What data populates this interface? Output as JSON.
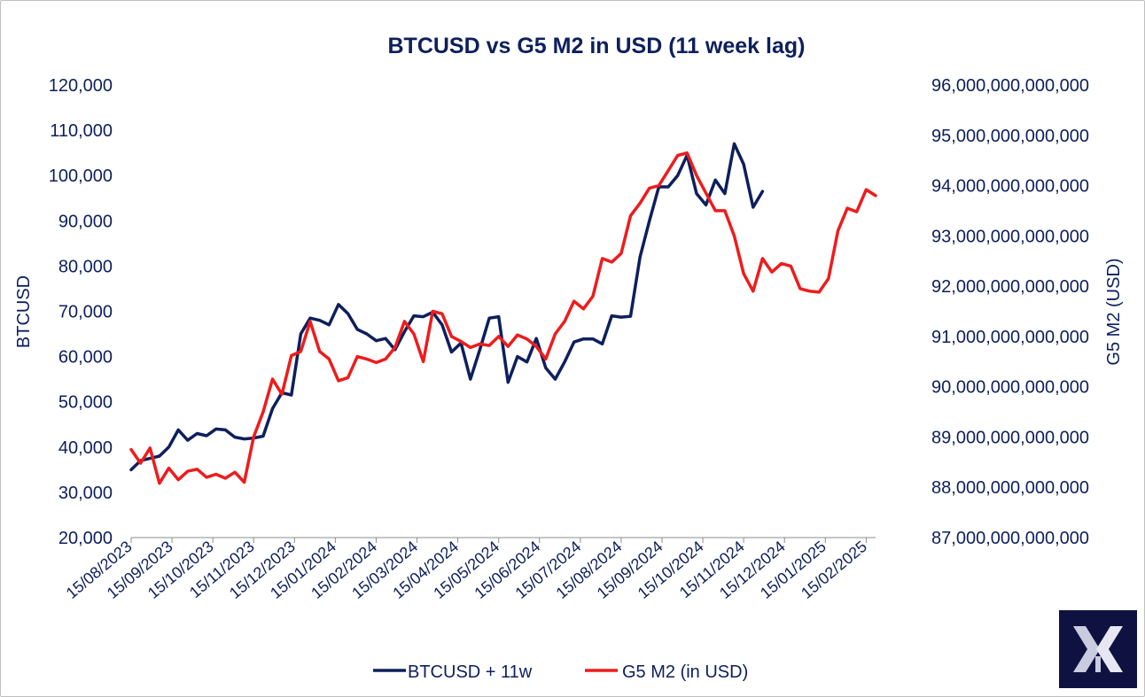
{
  "chart_data": {
    "type": "line",
    "title": "BTCUSD vs G5 M2 in USD (11 week lag)",
    "ylabel_left": "BTCUSD",
    "ylabel_right": "G5 M2 (USD)",
    "ylim_left": [
      20000,
      120000
    ],
    "ylim_right": [
      87000000000000,
      96000000000000
    ],
    "yticks_left": [
      "20,000",
      "30,000",
      "40,000",
      "50,000",
      "60,000",
      "70,000",
      "80,000",
      "90,000",
      "100,000",
      "110,000",
      "120,000"
    ],
    "yticks_right": [
      "87,000,000,000,000",
      "88,000,000,000,000",
      "89,000,000,000,000",
      "90,000,000,000,000",
      "91,000,000,000,000",
      "92,000,000,000,000",
      "93,000,000,000,000",
      "94,000,000,000,000",
      "95,000,000,000,000",
      "96,000,000,000,000"
    ],
    "x_tick_labels": [
      "15/08/2023",
      "15/09/2023",
      "15/10/2023",
      "15/11/2023",
      "15/12/2023",
      "15/01/2024",
      "15/02/2024",
      "15/03/2024",
      "15/04/2024",
      "15/05/2024",
      "15/06/2024",
      "15/07/2024",
      "15/08/2024",
      "15/09/2024",
      "15/10/2024",
      "15/11/2024",
      "15/12/2024",
      "15/01/2025",
      "15/02/2025"
    ],
    "x_week_index_note": "values are weekly points starting at 15/08/2023",
    "series": [
      {
        "name": "BTCUSD + 11w",
        "axis": "left",
        "color": "#0d1f5c",
        "values": [
          35000,
          37000,
          37500,
          38000,
          40000,
          43800,
          41500,
          43000,
          42500,
          44000,
          43800,
          42200,
          41800,
          42000,
          42400,
          48500,
          52000,
          51500,
          65000,
          68500,
          68000,
          67000,
          71500,
          69500,
          66000,
          65000,
          63500,
          64000,
          61500,
          65500,
          69000,
          68800,
          69800,
          67000,
          61000,
          63000,
          55000,
          61500,
          68500,
          68800,
          54300,
          60000,
          58800,
          64000,
          57500,
          55000,
          58800,
          63200,
          63900,
          63900,
          62800,
          69000,
          68700,
          68900,
          82000,
          90000,
          97500,
          97500,
          100000,
          104500,
          96000,
          93500,
          99000,
          96000,
          107000,
          102500,
          93000,
          96500
        ]
      },
      {
        "name": "G5 M2 (in USD)",
        "axis": "right",
        "color": "#ee1c1c",
        "values": [
          88.75,
          88.48,
          88.78,
          88.08,
          88.38,
          88.15,
          88.32,
          88.36,
          88.2,
          88.26,
          88.18,
          88.3,
          88.1,
          89.0,
          89.5,
          90.15,
          89.85,
          90.62,
          90.7,
          91.3,
          90.7,
          90.55,
          90.12,
          90.18,
          90.6,
          90.55,
          90.48,
          90.55,
          90.78,
          91.3,
          91.05,
          90.5,
          91.5,
          91.45,
          91.0,
          90.9,
          90.78,
          90.85,
          90.82,
          91.0,
          90.8,
          91.03,
          90.95,
          90.8,
          90.55,
          91.05,
          91.3,
          91.7,
          91.55,
          91.8,
          92.55,
          92.48,
          92.65,
          93.4,
          93.65,
          93.95,
          94.0,
          94.3,
          94.6,
          94.65,
          94.2,
          93.85,
          93.5,
          93.5,
          93.0,
          92.25,
          91.9,
          92.55,
          92.28,
          92.45,
          92.4,
          91.95,
          91.9,
          91.88,
          92.15,
          93.1,
          93.55,
          93.48,
          93.92,
          93.8
        ]
      }
    ],
    "legend": [
      "BTCUSD + 11w",
      "G5 M2 (in USD)"
    ],
    "legend_position": "bottom",
    "grid": false
  },
  "logo": {
    "name": "brand-logo"
  }
}
